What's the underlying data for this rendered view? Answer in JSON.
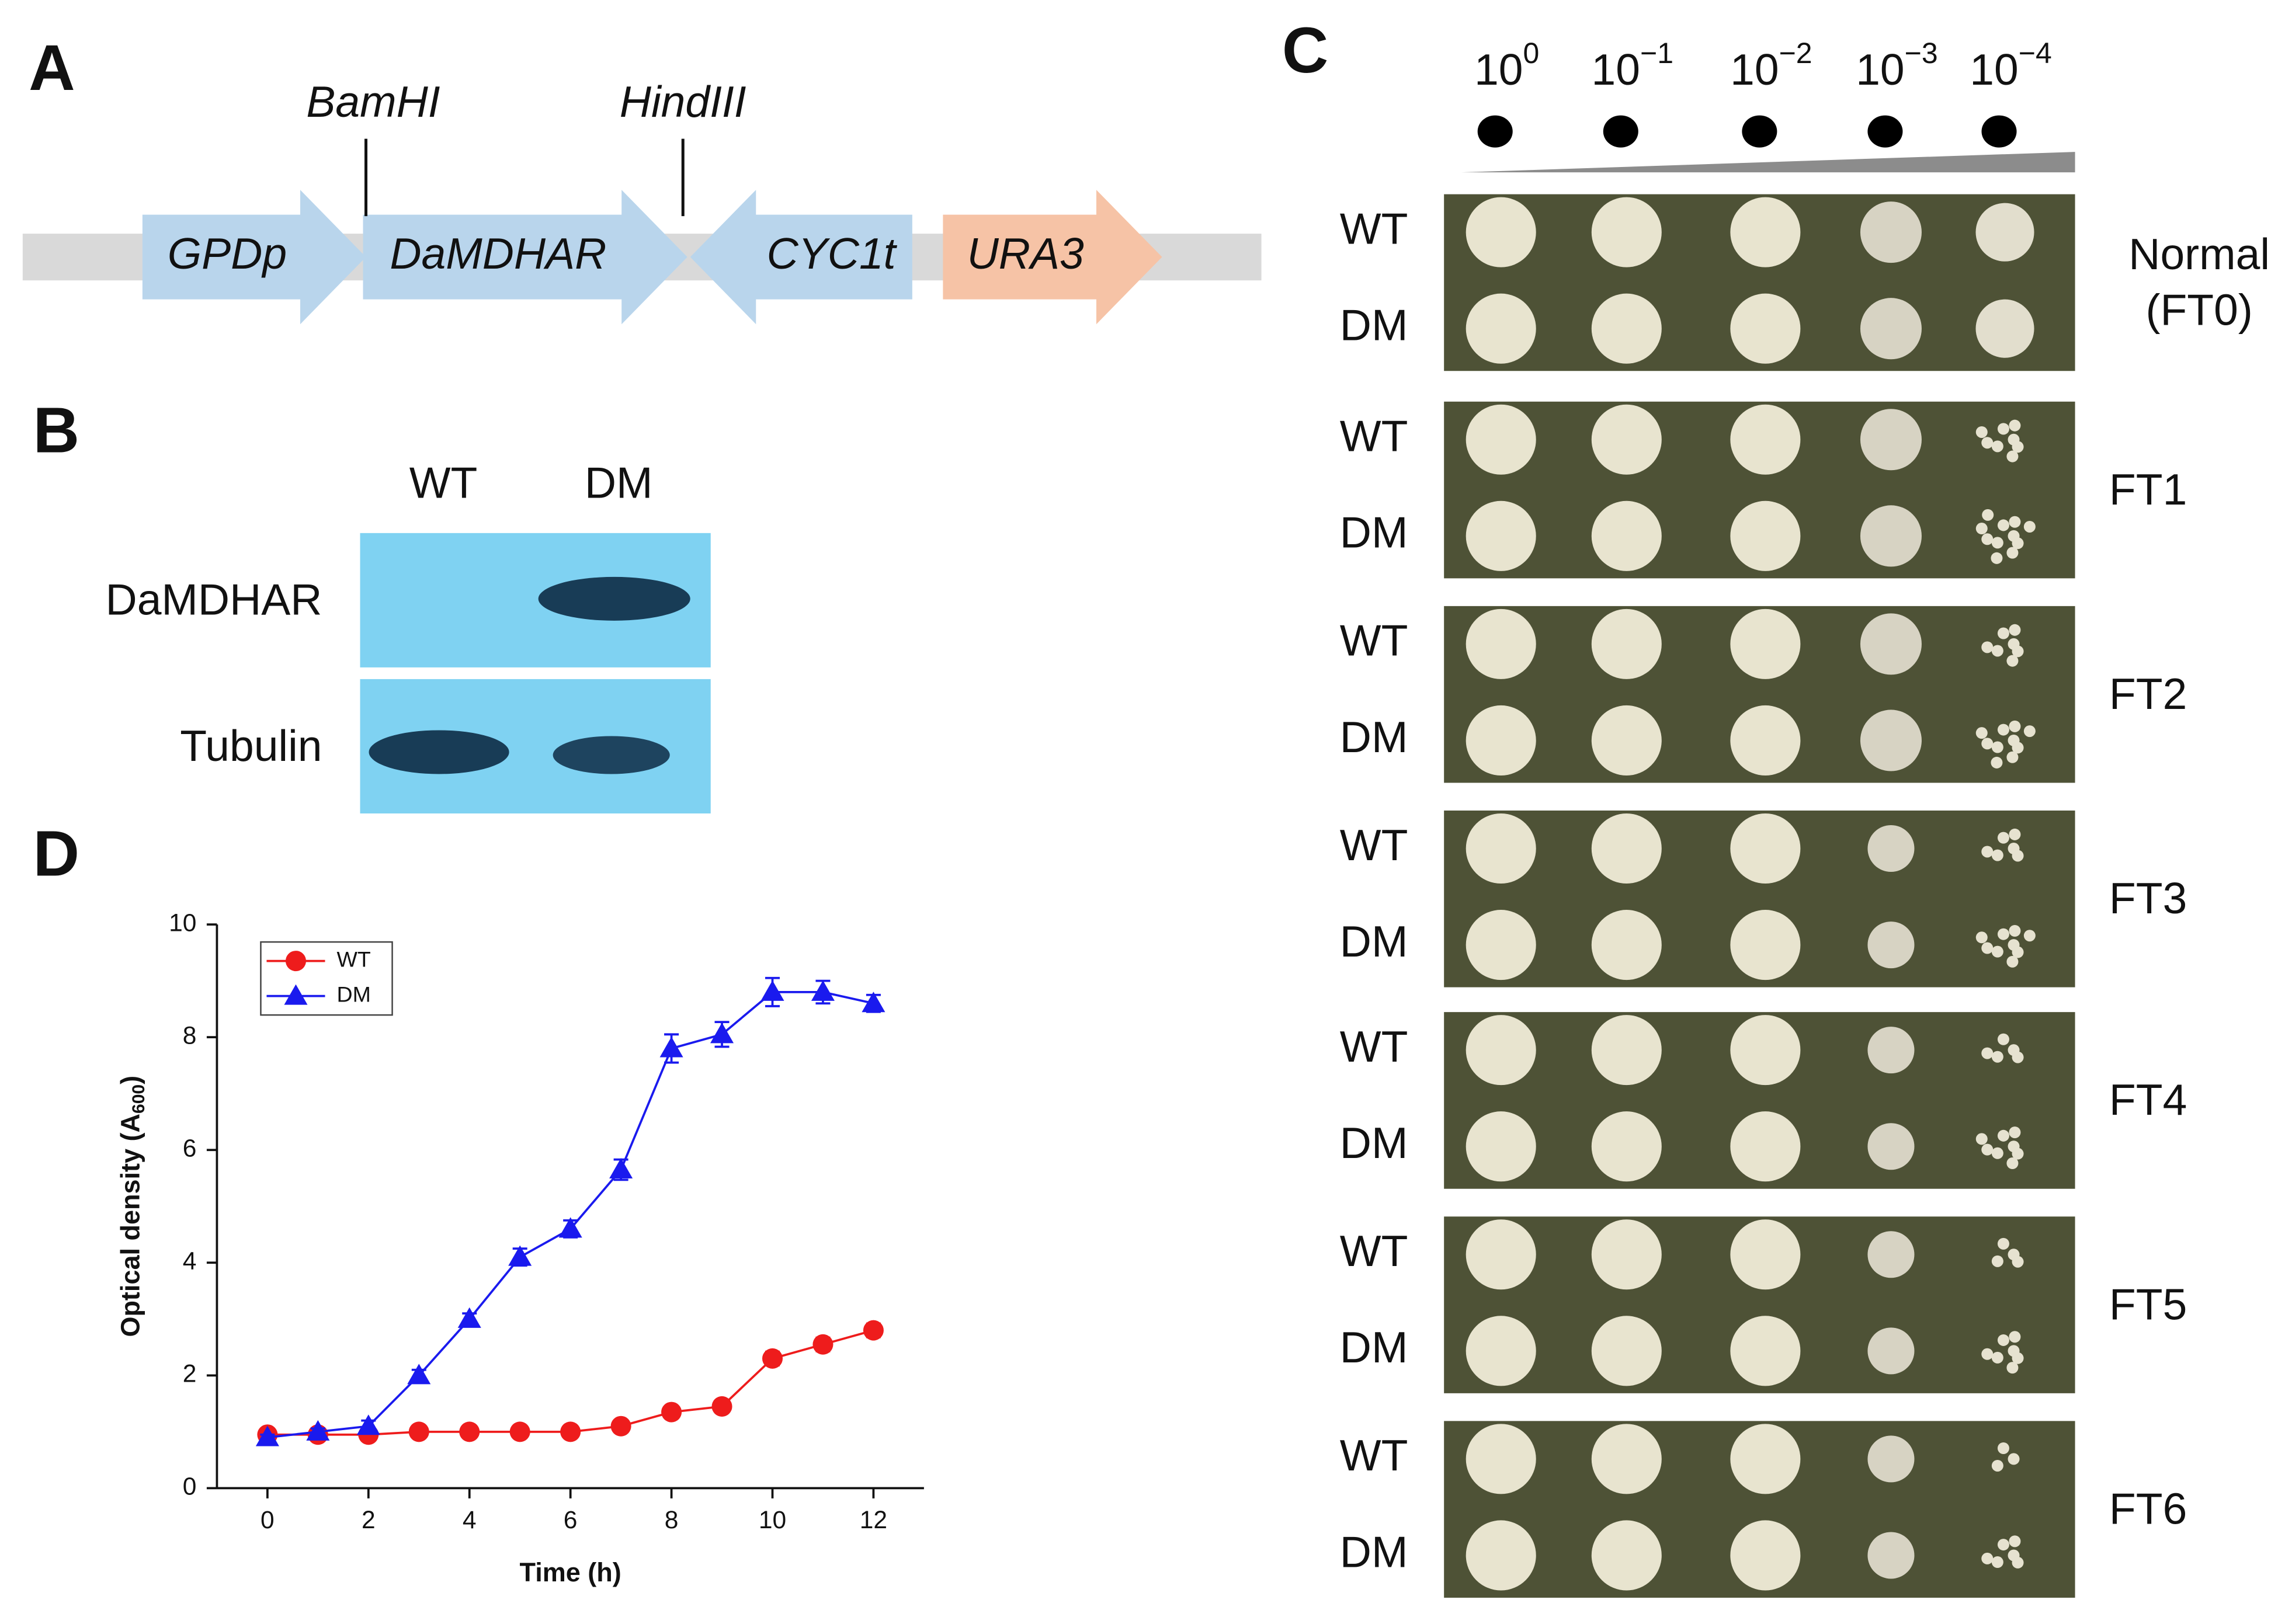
{
  "panel_labels": [
    "A",
    "B",
    "C",
    "D"
  ],
  "construct": {
    "parts": [
      {
        "label": "GPDp",
        "direction": "right",
        "color": "#b9d5ec"
      },
      {
        "label": "DaMDHAR",
        "direction": "right",
        "color": "#b9d5ec"
      },
      {
        "label": "CYC1t",
        "direction": "left",
        "color": "#b9d5ec"
      },
      {
        "label": "URA3",
        "direction": "right",
        "color": "#f6c3a6"
      }
    ],
    "sites": [
      "BamHI",
      "HindIII"
    ]
  },
  "blot": {
    "lanes": [
      "WT",
      "DM"
    ],
    "rows": [
      "DaMDHAR",
      "Tubulin"
    ]
  },
  "spot_assay": {
    "dilutions": [
      {
        "base": "10",
        "exponent": "0"
      },
      {
        "base": "10",
        "exponent": "−1"
      },
      {
        "base": "10",
        "exponent": "−2"
      },
      {
        "base": "10",
        "exponent": "−3"
      },
      {
        "base": "10",
        "exponent": "−4"
      }
    ],
    "strains": [
      "WT",
      "DM"
    ],
    "conditions": [
      [
        "Normal",
        "(FT0)"
      ],
      [
        "FT1"
      ],
      [
        "FT2"
      ],
      [
        "FT3"
      ],
      [
        "FT4"
      ],
      [
        "FT5"
      ],
      [
        "FT6"
      ]
    ]
  },
  "chart_data": {
    "type": "line",
    "xlabel": "Time (h)",
    "ylabel": {
      "main": "Optical density (A",
      "subscript": "600",
      "close": ")"
    },
    "x": [
      0,
      1,
      2,
      3,
      4,
      5,
      6,
      7,
      8,
      9,
      10,
      11,
      12
    ],
    "series": [
      {
        "name": "WT",
        "color": "#ee1c1c",
        "marker": "circle",
        "values": [
          0.95,
          0.95,
          0.95,
          1.0,
          1.0,
          1.0,
          1.0,
          1.1,
          1.35,
          1.45,
          2.3,
          2.55,
          2.8
        ],
        "errors": [
          0.08,
          0.06,
          0.06,
          0.06,
          0.06,
          0.06,
          0.06,
          0.08,
          0.1,
          0.1,
          0.12,
          0.12,
          0.12
        ]
      },
      {
        "name": "DM",
        "color": "#1a1aee",
        "marker": "triangle",
        "values": [
          0.9,
          1.0,
          1.1,
          2.0,
          3.0,
          4.1,
          4.6,
          5.65,
          7.8,
          8.05,
          8.8,
          8.8,
          8.6
        ],
        "errors": [
          0.05,
          0.06,
          0.1,
          0.1,
          0.1,
          0.15,
          0.15,
          0.18,
          0.25,
          0.22,
          0.25,
          0.2,
          0.15
        ]
      }
    ],
    "xlim": [
      -1,
      13
    ],
    "ylim": [
      0,
      10
    ],
    "xticks": [
      0,
      2,
      4,
      6,
      8,
      10,
      12
    ],
    "yticks": [
      0,
      2,
      4,
      6,
      8,
      10
    ],
    "legend": "upper left"
  }
}
